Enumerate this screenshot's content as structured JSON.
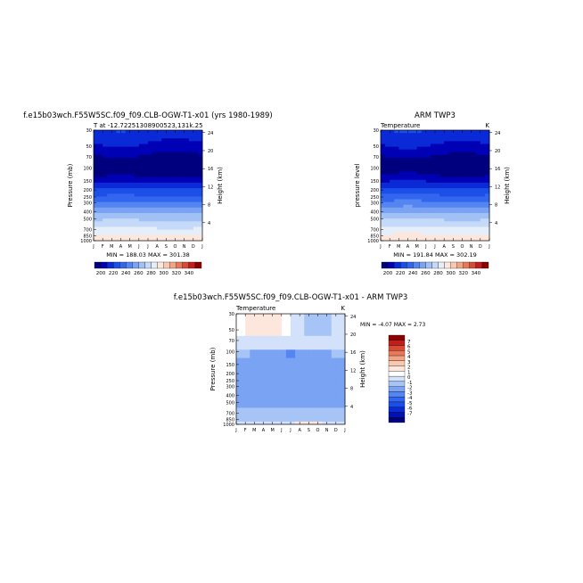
{
  "chart_data": [
    {
      "type": "heatmap",
      "title": "f.e15b03wch.F55W5SC.f09_f09.CLB-OGW-T1-x01 (yrs 1980-1989)",
      "subtitle_left": "T at -12.72251308900523,131k.25",
      "subtitle_right": "",
      "ylabel": "Pressure (mb)",
      "y2label": "Height (km)",
      "x_ticks": [
        "J",
        "F",
        "M",
        "A",
        "M",
        "J",
        "J",
        "A",
        "S",
        "O",
        "N",
        "D",
        "J"
      ],
      "y_ticks": [
        "30",
        "50",
        "70",
        "100",
        "150",
        "200",
        "250",
        "300",
        "400",
        "500",
        "700",
        "850",
        "1000"
      ],
      "y_range": [
        30,
        1000
      ],
      "y_scale": "log",
      "y2_ticks": [
        "4",
        "8",
        "12",
        "16",
        "20",
        "24"
      ],
      "stats": "MIN = 188.03  MAX = 301.38",
      "colorbar": {
        "orientation": "horizontal",
        "labels": [
          "200",
          "220",
          "240",
          "260",
          "280",
          "300",
          "320",
          "340"
        ],
        "levels": [
          190,
          200,
          210,
          220,
          230,
          240,
          250,
          260,
          270,
          280,
          290,
          300,
          310,
          320,
          330,
          340,
          350
        ]
      }
    },
    {
      "type": "heatmap",
      "title": "ARM TWP3",
      "subtitle_left": "Temperature",
      "subtitle_right": "K",
      "ylabel": "pressure level",
      "y2label": "Height (km)",
      "x_ticks": [
        "J",
        "F",
        "M",
        "A",
        "M",
        "J",
        "J",
        "A",
        "S",
        "O",
        "N",
        "D",
        "J"
      ],
      "y_ticks": [
        "30",
        "50",
        "70",
        "100",
        "150",
        "200",
        "250",
        "300",
        "400",
        "500",
        "700",
        "850",
        "1000"
      ],
      "y_range": [
        30,
        1000
      ],
      "y_scale": "log",
      "y2_ticks": [
        "4",
        "8",
        "12",
        "16",
        "20",
        "24"
      ],
      "stats": "MIN = 191.84  MAX = 302.19",
      "colorbar": {
        "orientation": "horizontal",
        "labels": [
          "200",
          "220",
          "240",
          "260",
          "280",
          "300",
          "320",
          "340"
        ],
        "levels": [
          190,
          200,
          210,
          220,
          230,
          240,
          250,
          260,
          270,
          280,
          290,
          300,
          310,
          320,
          330,
          340,
          350
        ]
      }
    },
    {
      "type": "heatmap",
      "title": "f.e15b03wch.F55W5SC.f09_f09.CLB-OGW-T1-x01 - ARM TWP3",
      "subtitle_left": "Temperature",
      "subtitle_right": "K",
      "ylabel": "Pressure (mb)",
      "y2label": "Height (km)",
      "x_ticks": [
        "J",
        "F",
        "M",
        "A",
        "M",
        "J",
        "J",
        "A",
        "S",
        "O",
        "N",
        "D",
        "J"
      ],
      "y_ticks": [
        "30",
        "50",
        "70",
        "100",
        "150",
        "200",
        "250",
        "300",
        "400",
        "500",
        "700",
        "850",
        "1000"
      ],
      "y_range": [
        30,
        1000
      ],
      "y_scale": "log",
      "y2_ticks": [
        "4",
        "8",
        "12",
        "16",
        "20",
        "24"
      ],
      "stats": "MIN = -4.07  MAX =   2.73",
      "colorbar": {
        "orientation": "vertical",
        "labels": [
          "7",
          "6",
          "5",
          "4",
          "3",
          "2",
          "1",
          "0",
          "-1",
          "-2",
          "-3",
          "-4",
          "-5",
          "-6",
          "-7"
        ]
      }
    }
  ],
  "colors": {
    "temp_scale": [
      "#00007f",
      "#0000b4",
      "#0a2ad8",
      "#1c4ee8",
      "#3366ee",
      "#5585f0",
      "#7aa3f3",
      "#a0c0f6",
      "#c5daf9",
      "#e6eefa",
      "#fde6dc",
      "#f8c8b0",
      "#f2a585",
      "#e8785a",
      "#d94a35",
      "#c01e1a",
      "#8b0000"
    ],
    "diff_scale": [
      "#00007f",
      "#0012b0",
      "#0a2ad8",
      "#1c4ee8",
      "#3366ee",
      "#5585f0",
      "#7aa3f3",
      "#a6c4f6",
      "#d3e2fa",
      "#ffffff",
      "#fde6dc",
      "#f8c8b0",
      "#f2a585",
      "#e8785a",
      "#d94a35",
      "#c01e1a",
      "#8b0000"
    ]
  }
}
